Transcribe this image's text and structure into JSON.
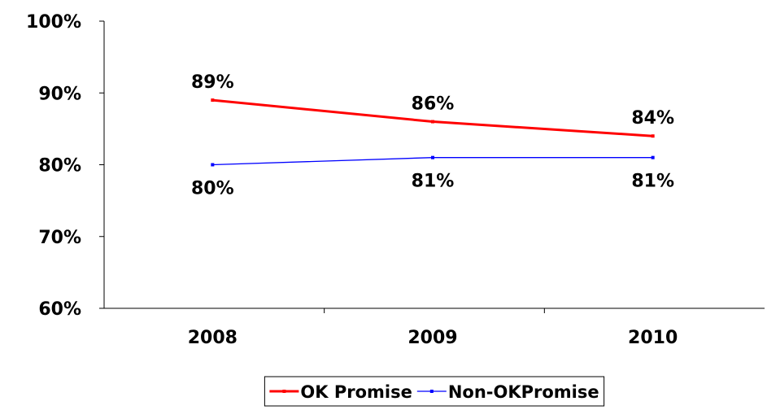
{
  "chart_data": {
    "type": "line",
    "title": "",
    "xlabel": "",
    "ylabel": "",
    "categories": [
      "2008",
      "2009",
      "2010"
    ],
    "ylim": [
      60,
      100
    ],
    "yticks": [
      60,
      70,
      80,
      90,
      100
    ],
    "ytick_labels": [
      "60%",
      "70%",
      "80%",
      "90%",
      "100%"
    ],
    "grid": false,
    "legend_position": "bottom",
    "series": [
      {
        "name": "OK Promise",
        "values": [
          89,
          86,
          84
        ],
        "labels": [
          "89%",
          "86%",
          "84%"
        ],
        "color": "#ff0000"
      },
      {
        "name": "Non-OKPromise",
        "values": [
          80,
          81,
          81
        ],
        "labels": [
          "80%",
          "81%",
          "81%"
        ],
        "color": "#0000ff"
      }
    ]
  }
}
